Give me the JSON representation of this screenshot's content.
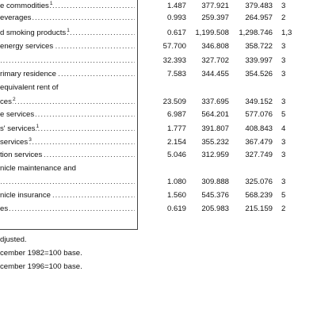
{
  "rows": [
    {
      "label": "e commodities",
      "sup": "1",
      "c1": "1.487",
      "c2": "377.921",
      "c3": "379.483",
      "c4": "3"
    },
    {
      "label": "everages",
      "sup": "",
      "c1": "0.993",
      "c2": "259.397",
      "c3": "264.957",
      "c4": "2"
    },
    {
      "label": "d smoking products",
      "sup": "1",
      "c1": "0.617",
      "c2": "1,199.508",
      "c3": "1,298.746",
      "c4": "1,3"
    },
    {
      "label": "energy services",
      "sup": "",
      "c1": "57.700",
      "c2": "346.808",
      "c3": "358.722",
      "c4": "3"
    },
    {
      "label": "",
      "sup": "",
      "c1": "32.393",
      "c2": "327.702",
      "c3": "339.997",
      "c4": "3"
    },
    {
      "label": "rimary residence",
      "sup": "",
      "c1": "7.583",
      "c2": "344.455",
      "c3": "354.526",
      "c4": "3"
    },
    {
      "label": "equivalent rent of",
      "sup": "",
      "c1": "",
      "c2": "",
      "c3": "",
      "c4": ""
    },
    {
      "label": "ces",
      "sup": "2",
      "c1": "23.509",
      "c2": "337.695",
      "c3": "349.152",
      "c4": "3"
    },
    {
      "label": "e services",
      "sup": "",
      "c1": "6.987",
      "c2": "564.201",
      "c3": "577.076",
      "c4": "5"
    },
    {
      "label": "s' services",
      "sup": "1",
      "c1": "1.777",
      "c2": "391.807",
      "c3": "408.843",
      "c4": "4"
    },
    {
      "label": "services",
      "sup": "3",
      "c1": "2.154",
      "c2": "355.232",
      "c3": "367.479",
      "c4": "3"
    },
    {
      "label": "tion services",
      "sup": "",
      "c1": "5.046",
      "c2": "312.959",
      "c3": "327.749",
      "c4": "3"
    },
    {
      "label": "nicle maintenance and",
      "sup": "",
      "c1": "",
      "c2": "",
      "c3": "",
      "c4": ""
    },
    {
      "label": "",
      "sup": "",
      "c1": "1.080",
      "c2": "309.888",
      "c3": "325.076",
      "c4": "3"
    },
    {
      "label": "nicle insurance",
      "sup": "",
      "c1": "1.560",
      "c2": "545.376",
      "c3": "568.239",
      "c4": "5"
    },
    {
      "label": "es",
      "sup": "",
      "c1": "0.619",
      "c2": "205.983",
      "c3": "215.159",
      "c4": "2"
    }
  ],
  "footnotes": [
    "djusted.",
    "cember 1982=100 base.",
    "cember 1996=100 base."
  ]
}
